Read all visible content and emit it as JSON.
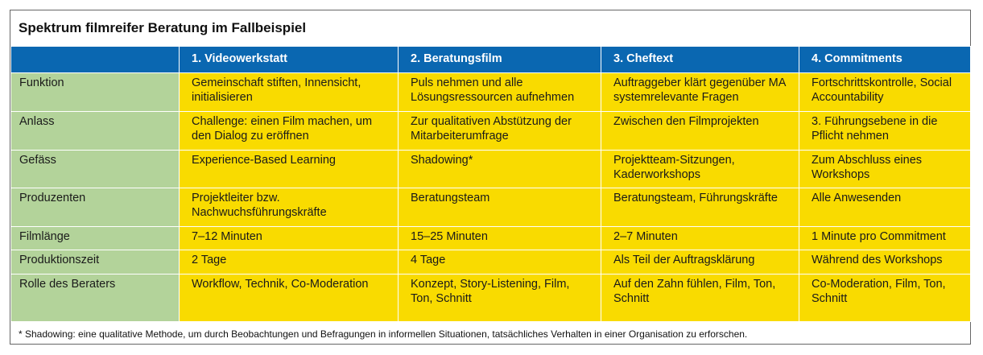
{
  "title": "Spektrum filmreifer Beratung im Fallbeispiel",
  "table": {
    "columns": [
      "1. Videowerkstatt",
      "2. Beratungsfilm",
      "3. Cheftext",
      "4. Commitments"
    ],
    "rows": [
      {
        "label": "Funktion",
        "cells": [
          "Gemeinschaft stiften, Innensicht, initialisieren",
          "Puls nehmen und alle Lösungsressourcen aufnehmen",
          "Auftraggeber klärt gegenüber MA systemrelevante Fragen",
          "Fortschrittskontrolle, Social Accountability"
        ]
      },
      {
        "label": "Anlass",
        "cells": [
          "Challenge: einen Film machen, um den Dialog zu eröffnen",
          "Zur qualitativen Abstützung der Mitarbeiterumfrage",
          "Zwischen den Filmprojekten",
          "3. Führungsebene in die Pflicht nehmen"
        ]
      },
      {
        "label": "Gefäss",
        "cells": [
          "Experience-Based Learning",
          "Shadowing*",
          "Projektteam-Sitzungen, Kaderworkshops",
          "Zum Abschluss eines Workshops"
        ]
      },
      {
        "label": "Produzenten",
        "cells": [
          "Projektleiter bzw. Nachwuchsführungskräfte",
          "Beratungsteam",
          "Beratungsteam, Führungskräfte",
          "Alle Anwesenden"
        ]
      },
      {
        "label": "Filmlänge",
        "cells": [
          "7–12 Minuten",
          "15–25 Minuten",
          "2–7 Minuten",
          "1 Minute pro Commitment"
        ]
      },
      {
        "label": "Produktionszeit",
        "cells": [
          "2 Tage",
          "4 Tage",
          "Als Teil der Auftragsklärung",
          "Während des Workshops"
        ]
      },
      {
        "label": "Rolle des Beraters",
        "cells": [
          "Workflow, Technik, Co-Moderation",
          "Konzept, Story-Listening, Film, Ton, Schnitt",
          "Auf den Zahn fühlen, Film, Ton, Schnitt",
          "Co-Moderation, Film, Ton, Schnitt"
        ]
      }
    ]
  },
  "footnote": "* Shadowing: eine qualitative Methode, um durch Beobachtungen und Befragungen in informellen Situationen, tatsächliches Verhalten in einer Organisation zu erforschen."
}
